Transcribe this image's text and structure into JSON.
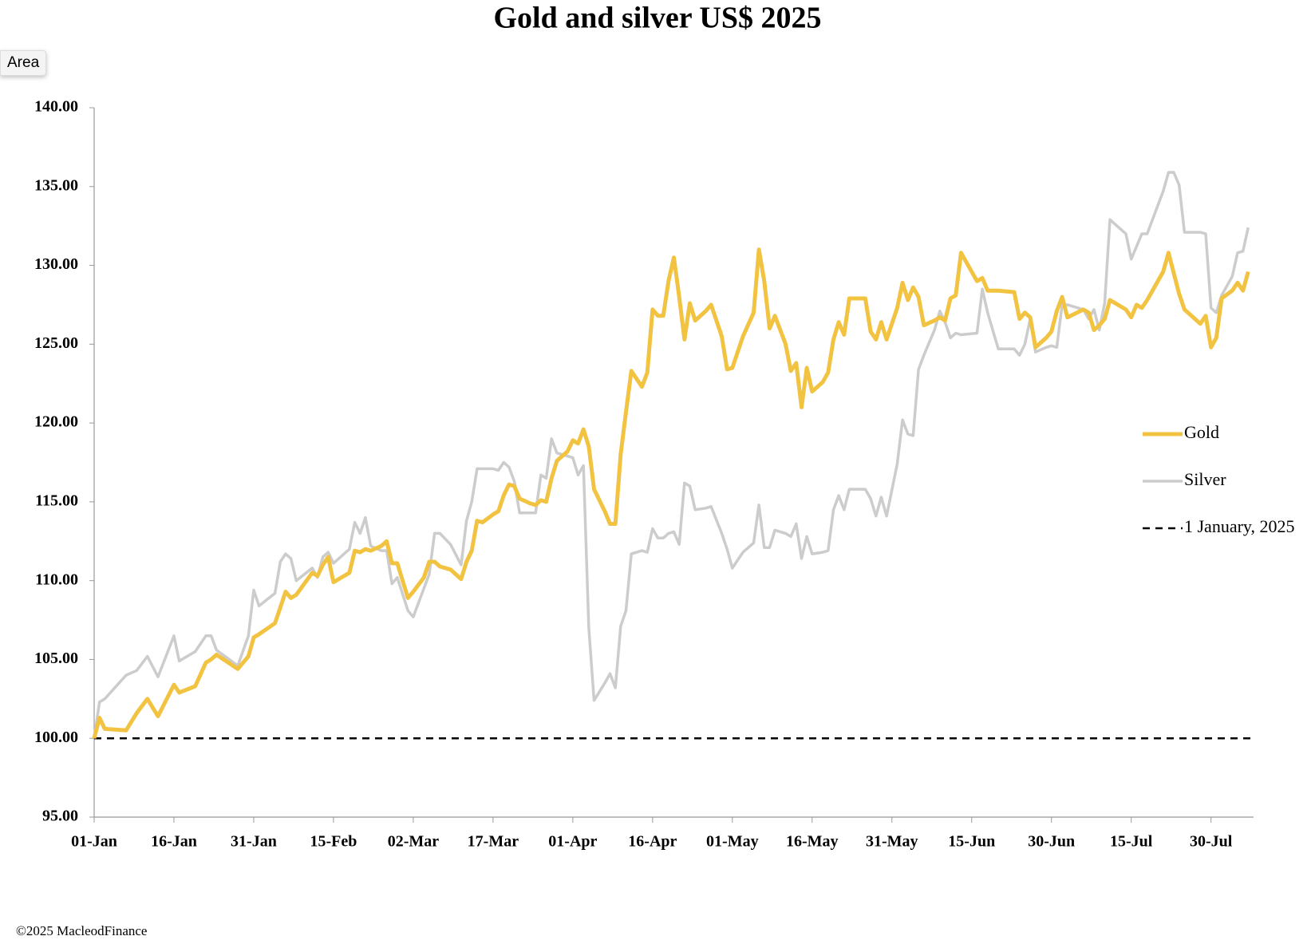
{
  "overlay_button": "Area",
  "source": "©2025 MacleodFinance",
  "chart_data": {
    "type": "line",
    "title": "Gold and silver  US$ 2025",
    "x": [
      "01-Jan",
      "02-Jan",
      "03-Jan",
      "07-Jan",
      "09-Jan",
      "11-Jan",
      "13-Jan",
      "16-Jan",
      "17-Jan",
      "20-Jan",
      "22-Jan",
      "23-Jan",
      "24-Jan",
      "28-Jan",
      "30-Jan",
      "31-Jan",
      "01-Feb",
      "04-Feb",
      "05-Feb",
      "06-Feb",
      "07-Feb",
      "08-Feb",
      "11-Feb",
      "12-Feb",
      "13-Feb",
      "14-Feb",
      "15-Feb",
      "18-Feb",
      "19-Feb",
      "20-Feb",
      "21-Feb",
      "22-Feb",
      "24-Feb",
      "25-Feb",
      "26-Feb",
      "27-Feb",
      "01-Mar",
      "02-Mar",
      "04-Mar",
      "05-Mar",
      "06-Mar",
      "07-Mar",
      "09-Mar",
      "11-Mar",
      "12-Mar",
      "13-Mar",
      "14-Mar",
      "15-Mar",
      "17-Mar",
      "18-Mar",
      "19-Mar",
      "20-Mar",
      "21-Mar",
      "22-Mar",
      "24-Mar",
      "25-Mar",
      "26-Mar",
      "27-Mar",
      "28-Mar",
      "29-Mar",
      "31-Mar",
      "01-Apr",
      "02-Apr",
      "03-Apr",
      "04-Apr",
      "05-Apr",
      "07-Apr",
      "08-Apr",
      "09-Apr",
      "10-Apr",
      "11-Apr",
      "12-Apr",
      "13-Apr",
      "14-Apr",
      "15-Apr",
      "16-Apr",
      "17-Apr",
      "18-Apr",
      "19-Apr",
      "20-Apr",
      "21-Apr",
      "22-Apr",
      "23-Apr",
      "24-Apr",
      "26-Apr",
      "27-Apr",
      "29-Apr",
      "30-Apr",
      "01-May",
      "03-May",
      "05-May",
      "06-May",
      "07-May",
      "08-May",
      "09-May",
      "11-May",
      "12-May",
      "13-May",
      "14-May",
      "15-May",
      "16-May",
      "18-May",
      "19-May",
      "20-May",
      "21-May",
      "22-May",
      "23-May",
      "26-May",
      "27-May",
      "28-May",
      "29-May",
      "30-May",
      "01-Jun",
      "02-Jun",
      "03-Jun",
      "04-Jun",
      "05-Jun",
      "06-Jun",
      "08-Jun",
      "09-Jun",
      "10-Jun",
      "11-Jun",
      "12-Jun",
      "13-Jun",
      "16-Jun",
      "17-Jun",
      "18-Jun",
      "20-Jun",
      "23-Jun",
      "24-Jun",
      "25-Jun",
      "26-Jun",
      "27-Jun",
      "29-Jun",
      "30-Jun",
      "01-Jul",
      "02-Jul",
      "03-Jul",
      "06-Jul",
      "07-Jul",
      "08-Jul",
      "09-Jul",
      "10-Jul",
      "11-Jul",
      "14-Jul",
      "15-Jul",
      "16-Jul",
      "17-Jul",
      "18-Jul",
      "21-Jul",
      "22-Jul",
      "23-Jul",
      "24-Jul",
      "25-Jul",
      "28-Jul",
      "29-Jul",
      "30-Jul",
      "31-Jul",
      "01-Aug",
      "03-Aug",
      "04-Aug",
      "05-Aug",
      "06-Aug"
    ],
    "series": [
      {
        "name": "Gold",
        "color": "#f2c241",
        "values": [
          100,
          101.3,
          100.6,
          100.5,
          101.6,
          102.5,
          101.4,
          103.4,
          102.9,
          103.3,
          104.8,
          105.0,
          105.3,
          104.4,
          105.2,
          106.4,
          106.6,
          107.3,
          108.3,
          109.3,
          108.9,
          109.1,
          110.5,
          110.3,
          111.0,
          111.5,
          109.9,
          110.5,
          111.9,
          111.8,
          112.0,
          111.9,
          112.2,
          112.5,
          111.1,
          111.1,
          108.9,
          109.3,
          110.2,
          111.2,
          111.2,
          110.9,
          110.7,
          110.1,
          111.2,
          111.9,
          113.8,
          113.7,
          114.2,
          114.4,
          115.4,
          116.1,
          116.0,
          115.2,
          114.9,
          114.8,
          115.1,
          115.0,
          116.5,
          117.6,
          118.2,
          118.9,
          118.7,
          119.6,
          118.5,
          115.8,
          114.4,
          113.6,
          113.6,
          118.0,
          120.7,
          123.3,
          122.8,
          122.3,
          123.2,
          127.2,
          126.8,
          126.8,
          129.0,
          130.5,
          128.0,
          125.3,
          127.6,
          126.5,
          127.1,
          127.5,
          125.5,
          123.4,
          123.5,
          125.5,
          127.0,
          131.0,
          129.0,
          126.0,
          126.8,
          125.0,
          123.3,
          123.8,
          121.0,
          123.5,
          122.0,
          122.6,
          123.2,
          125.3,
          126.4,
          125.6,
          127.9,
          127.9,
          125.8,
          125.3,
          126.4,
          125.3,
          127.3,
          128.9,
          127.8,
          128.6,
          128.0,
          126.2,
          126.5,
          126.7,
          126.5,
          127.9,
          128.1,
          130.8,
          129.0,
          129.2,
          128.4,
          128.4,
          128.3,
          126.6,
          127.0,
          126.7,
          124.8,
          125.4,
          125.8,
          127.1,
          128.0,
          126.7,
          127.2,
          127.0,
          125.9,
          126.2,
          126.6,
          127.8,
          127.2,
          126.7,
          127.5,
          127.3,
          127.8,
          129.6,
          130.8,
          129.5,
          128.2,
          127.2,
          126.3,
          126.8,
          124.8,
          125.4,
          127.9,
          128.4,
          128.9,
          128.4,
          129.6
        ]
      },
      {
        "name": "Silver",
        "color": "#cccccc",
        "values": [
          100,
          102.3,
          102.5,
          104.0,
          104.3,
          105.2,
          103.9,
          106.5,
          104.9,
          105.5,
          106.5,
          106.5,
          105.6,
          104.6,
          106.5,
          109.4,
          108.4,
          109.2,
          111.2,
          111.7,
          111.4,
          110.0,
          110.8,
          110.2,
          111.5,
          111.8,
          111.1,
          112.0,
          113.7,
          113.0,
          114.0,
          112.2,
          111.9,
          111.9,
          109.8,
          110.2,
          108.1,
          107.7,
          109.5,
          110.4,
          113.0,
          113.0,
          112.3,
          111.0,
          113.8,
          115.0,
          117.1,
          117.1,
          117.1,
          117.0,
          117.5,
          117.2,
          116.3,
          114.3,
          114.3,
          114.3,
          116.7,
          116.5,
          119.0,
          118.1,
          117.9,
          117.8,
          116.7,
          117.3,
          107.0,
          102.4,
          103.5,
          104.1,
          103.2,
          107.1,
          108.1,
          111.7,
          111.8,
          111.9,
          111.8,
          113.3,
          112.7,
          112.7,
          113.0,
          113.1,
          112.3,
          116.2,
          116.0,
          114.5,
          114.6,
          114.7,
          113.0,
          112.0,
          110.8,
          111.8,
          112.4,
          114.8,
          112.1,
          112.1,
          113.2,
          113.0,
          112.8,
          113.6,
          111.4,
          112.8,
          111.7,
          111.8,
          111.9,
          114.5,
          115.4,
          114.5,
          115.8,
          115.8,
          115.2,
          114.1,
          115.3,
          114.1,
          117.4,
          120.2,
          119.3,
          119.2,
          123.4,
          124.3,
          125.9,
          127.1,
          126.4,
          125.4,
          125.7,
          125.6,
          125.7,
          128.5,
          127.0,
          124.7,
          124.7,
          124.3,
          125.0,
          126.6,
          124.5,
          124.8,
          124.9,
          124.8,
          127.5,
          127.5,
          127.2,
          126.6,
          127.2,
          125.9,
          127.6,
          132.9,
          132.0,
          130.4,
          131.2,
          132.0,
          132.0,
          134.7,
          135.9,
          135.9,
          135.1,
          132.1,
          132.1,
          132.0,
          127.3,
          127.0,
          128.1,
          129.3,
          130.8,
          130.9,
          132.4
        ]
      }
    ],
    "reference": {
      "name": "1 January, 2025",
      "value": 100,
      "color": "#000000"
    },
    "xlim": [
      "01-Jan",
      "07-Aug"
    ],
    "xticks": [
      "01-Jan",
      "16-Jan",
      "31-Jan",
      "15-Feb",
      "02-Mar",
      "17-Mar",
      "01-Apr",
      "16-Apr",
      "01-May",
      "16-May",
      "31-May",
      "15-Jun",
      "30-Jun",
      "15-Jul",
      "30-Jul"
    ],
    "ylim": [
      95,
      140
    ],
    "yticks": [
      {
        "value": 95,
        "label": "95.00"
      },
      {
        "value": 100,
        "label": "100.00"
      },
      {
        "value": 105,
        "label": "105.00"
      },
      {
        "value": 110,
        "label": "110.00"
      },
      {
        "value": 115,
        "label": "115.00"
      },
      {
        "value": 120,
        "label": "120.00"
      },
      {
        "value": 125,
        "label": "125.00"
      },
      {
        "value": 130,
        "label": "130.00"
      },
      {
        "value": 135,
        "label": "135.00"
      },
      {
        "value": 140,
        "label": "140.00"
      }
    ],
    "grid": false,
    "legend": "right"
  }
}
